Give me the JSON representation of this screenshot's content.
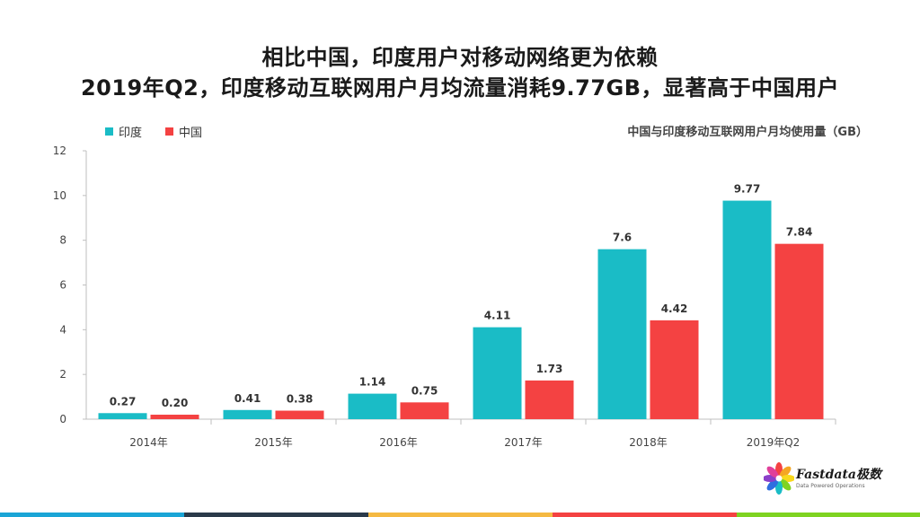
{
  "title_lines": [
    "相比中国，印度用户对移动网络更为依赖",
    "2019年Q2，印度移动互联网用户月均流量消耗9.77GB，显著高于中国用户"
  ],
  "chart_data": {
    "type": "bar",
    "title": "中国与印度移动互联网用户月均使用量（GB）",
    "categories": [
      "2014年",
      "2015年",
      "2016年",
      "2017年",
      "2018年",
      "2019年Q2"
    ],
    "series": [
      {
        "name": "印度",
        "color": "#1ABCC6",
        "values": [
          0.27,
          0.41,
          1.14,
          4.11,
          7.6,
          9.77
        ],
        "labels": [
          "0.27",
          "0.41",
          "1.14",
          "4.11",
          "7.6",
          "9.77"
        ]
      },
      {
        "name": "中国",
        "color": "#F44242",
        "values": [
          0.2,
          0.38,
          0.75,
          1.73,
          4.42,
          7.84
        ],
        "labels": [
          "0.20",
          "0.38",
          "0.75",
          "1.73",
          "4.42",
          "7.84"
        ]
      }
    ],
    "ylim": [
      0,
      12
    ],
    "yticks": [
      "0",
      "2",
      "4",
      "6",
      "8",
      "10",
      "12"
    ],
    "grid": false,
    "legend_position": "top-left",
    "xlabel": "",
    "ylabel": ""
  },
  "logo": {
    "text": "Fastdata极数",
    "tagline": "Data Powered Operations",
    "petal_colors": [
      "#F44242",
      "#F5A623",
      "#F8D81C",
      "#7ED321",
      "#1ABCC6",
      "#2F6FE0",
      "#8B3FC9",
      "#E0409A"
    ]
  },
  "footer_colors": [
    "#1AA5D6",
    "#2B3A4A",
    "#F5B942",
    "#F44242",
    "#7ED321"
  ]
}
